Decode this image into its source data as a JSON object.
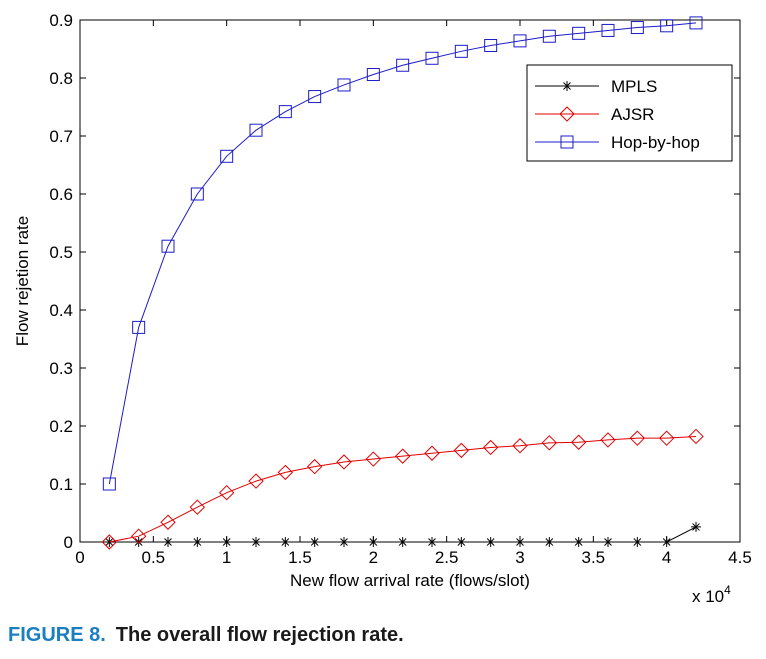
{
  "chart_data": {
    "type": "line",
    "title": "",
    "xlabel": "New flow arrival rate (flows/slot)",
    "ylabel": "Flow rejetion rate",
    "x_multiplier_label": "x 10",
    "x_multiplier_exp": "4",
    "xlim": [
      0,
      45000
    ],
    "ylim": [
      0,
      0.9
    ],
    "x_ticks": [
      0,
      5000,
      10000,
      15000,
      20000,
      25000,
      30000,
      35000,
      40000,
      45000
    ],
    "x_tick_labels": [
      "0",
      "0.5",
      "1",
      "1.5",
      "2",
      "2.5",
      "3",
      "3.5",
      "4",
      "4.5"
    ],
    "y_ticks": [
      0,
      0.1,
      0.2,
      0.3,
      0.4,
      0.5,
      0.6,
      0.7,
      0.8,
      0.9
    ],
    "y_tick_labels": [
      "0",
      "0.1",
      "0.2",
      "0.3",
      "0.4",
      "0.5",
      "0.6",
      "0.7",
      "0.8",
      "0.9"
    ],
    "grid": false,
    "legend_position": "top-right",
    "x": [
      2000,
      4000,
      6000,
      8000,
      10000,
      12000,
      14000,
      16000,
      18000,
      20000,
      22000,
      24000,
      26000,
      28000,
      30000,
      32000,
      34000,
      36000,
      38000,
      40000,
      42000
    ],
    "series": [
      {
        "name": "MPLS",
        "color": "#000000",
        "marker": "asterisk",
        "values": [
          0,
          0,
          0,
          0,
          0,
          0,
          0,
          0,
          0,
          0,
          0,
          0,
          0,
          0,
          0,
          0,
          0,
          0,
          0,
          0,
          0.026
        ]
      },
      {
        "name": "AJSR",
        "color": "#e00000",
        "marker": "diamond",
        "values": [
          0,
          0.01,
          0.034,
          0.06,
          0.085,
          0.105,
          0.12,
          0.13,
          0.138,
          0.143,
          0.148,
          0.153,
          0.158,
          0.163,
          0.166,
          0.171,
          0.172,
          0.176,
          0.179,
          0.179,
          0.182
        ]
      },
      {
        "name": "Hop-by-hop",
        "color": "#1c1cc8",
        "marker": "square",
        "values": [
          0.1,
          0.37,
          0.51,
          0.6,
          0.665,
          0.71,
          0.742,
          0.768,
          0.788,
          0.806,
          0.822,
          0.834,
          0.846,
          0.856,
          0.864,
          0.872,
          0.877,
          0.882,
          0.887,
          0.89,
          0.895
        ]
      }
    ]
  },
  "caption": {
    "figure_label": "FIGURE 8.",
    "text": "The overall flow rejection rate."
  }
}
